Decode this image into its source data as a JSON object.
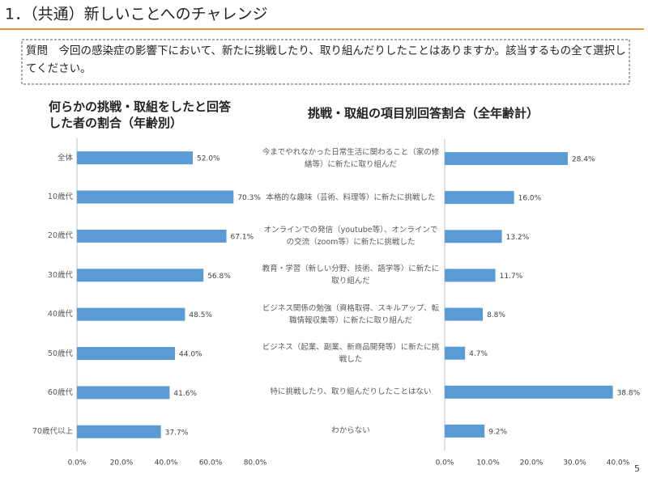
{
  "header": {
    "title": "1．（共通）新しいことへのチャレンジ"
  },
  "question": "質問　今回の感染症の影響下において、新たに挑戦したり、取り組んだりしたことはありますか。該当するもの全て選択してください。",
  "page_number": "5",
  "chart_data": [
    {
      "type": "hbar",
      "title": "何らかの挑戦・取組をしたと回答した者の割合（年齢別）",
      "color": "#5b9bd5",
      "categories": [
        "全体",
        "10歳代",
        "20歳代",
        "30歳代",
        "40歳代",
        "50歳代",
        "60歳代",
        "70歳代以上"
      ],
      "values": [
        52.0,
        70.3,
        67.1,
        56.8,
        48.5,
        44.0,
        41.6,
        37.7
      ],
      "value_labels": [
        "52.0%",
        "70.3%",
        "67.1%",
        "56.8%",
        "48.5%",
        "44.0%",
        "41.6%",
        "37.7%"
      ],
      "xlim": [
        0,
        80
      ],
      "xticks": [
        {
          "value": 0,
          "label": "0.0%"
        },
        {
          "value": 20,
          "label": "20.0%"
        },
        {
          "value": 40,
          "label": "40.0%"
        },
        {
          "value": 60,
          "label": "60.0%"
        },
        {
          "value": 80,
          "label": "80.0%"
        }
      ],
      "grid": false
    },
    {
      "type": "hbar",
      "title": "挑戦・取組の項目別回答割合（全年齢計）",
      "color": "#5b9bd5",
      "categories": [
        "今までやれなかった日常生活に関わること（家の修繕等）に新たに取り組んだ",
        "本格的な趣味（芸術、料理等）に新たに挑戦した",
        "オンラインでの発信（youtube等）、オンラインでの交流（zoom等）に新たに挑戦した",
        "教育・学習（新しい分野、技術、語学等）に新たに取り組んだ",
        "ビジネス関係の勉強（資格取得、スキルアップ、転職情報収集等）に新たに取り組んだ",
        "ビジネス（起業、副業、新商品開発等）に新たに挑戦した",
        "特に挑戦したり、取り組んだりしたことはない",
        "わからない"
      ],
      "values": [
        28.4,
        16.0,
        13.2,
        11.7,
        8.8,
        4.7,
        38.8,
        9.2
      ],
      "value_labels": [
        "28.4%",
        "16.0%",
        "13.2%",
        "11.7%",
        "8.8%",
        "4.7%",
        "38.8%",
        "9.2%"
      ],
      "xlim": [
        0,
        40
      ],
      "xticks": [
        {
          "value": 0,
          "label": "0.0%"
        },
        {
          "value": 10,
          "label": "10.0%"
        },
        {
          "value": 20,
          "label": "20.0%"
        },
        {
          "value": 30,
          "label": "30.0%"
        },
        {
          "value": 40,
          "label": "40.0%"
        }
      ],
      "grid": false
    }
  ]
}
